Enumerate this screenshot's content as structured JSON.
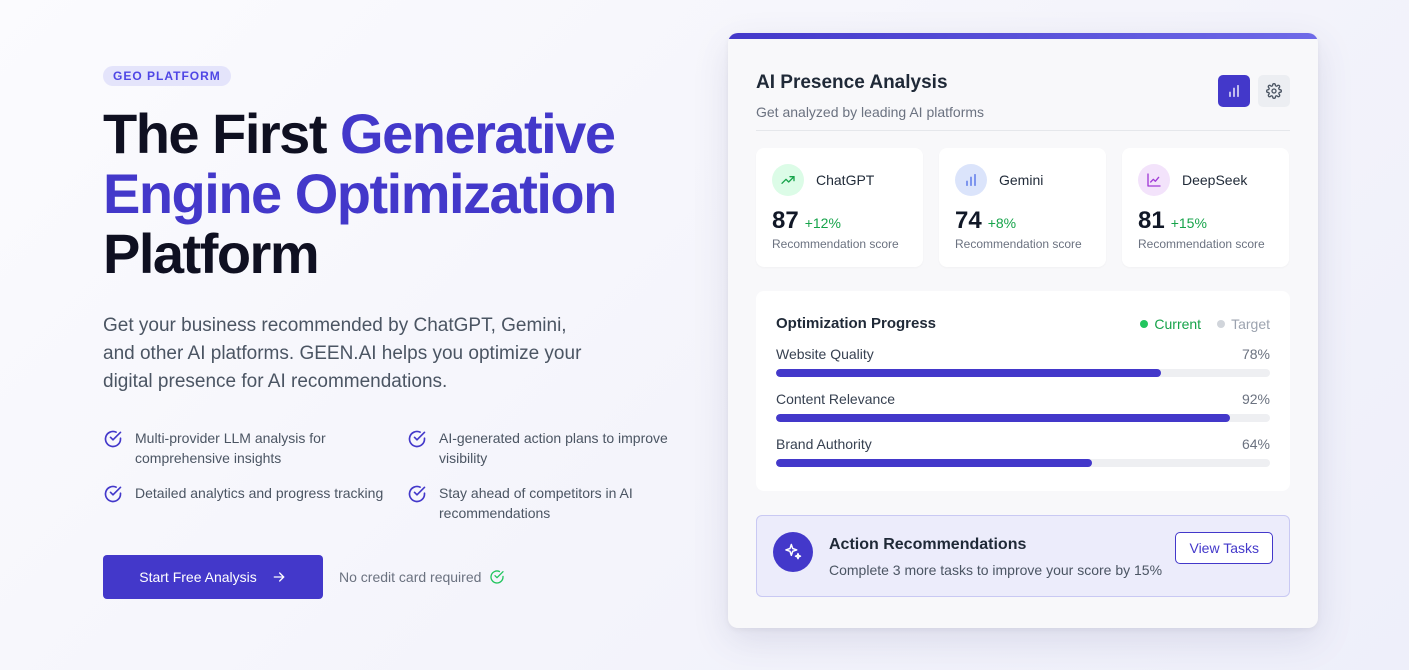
{
  "hero": {
    "badge": "GEO PLATFORM",
    "headline_plain": "The First ",
    "headline_accent": "Generative Engine Optimization",
    "headline_end": "Platform",
    "lead": "Get your business recommended by ChatGPT, Gemini, and other AI platforms. GEEN.AI helps you optimize your digital presence for AI recommendations.",
    "features": [
      "Multi-provider LLM analysis for comprehensive insights",
      "AI-generated action plans to improve visibility",
      "Detailed analytics and progress tracking",
      "Stay ahead of competitors in AI recommendations"
    ],
    "cta_label": "Start Free Analysis",
    "no_card": "No credit card required"
  },
  "card": {
    "title": "AI Presence Analysis",
    "subtitle": "Get analyzed by leading AI platforms",
    "providers": [
      {
        "name": "ChatGPT",
        "score": "87",
        "delta": "+12%",
        "label": "Recommendation score",
        "icon": "trending-up-icon",
        "bg": "#dcfce7",
        "fg": "#16a34a"
      },
      {
        "name": "Gemini",
        "score": "74",
        "delta": "+8%",
        "label": "Recommendation score",
        "icon": "bar-chart-icon",
        "bg": "#dbe4fb",
        "fg": "#4f6ee8"
      },
      {
        "name": "DeepSeek",
        "score": "81",
        "delta": "+15%",
        "label": "Recommendation score",
        "icon": "line-chart-icon",
        "bg": "#f3e3fb",
        "fg": "#a03ad6"
      }
    ],
    "progress": {
      "title": "Optimization Progress",
      "legend_current": "Current",
      "legend_target": "Target",
      "bars": [
        {
          "label": "Website Quality",
          "pct_text": "78%",
          "value": 78
        },
        {
          "label": "Content Relevance",
          "pct_text": "92%",
          "value": 92
        },
        {
          "label": "Brand Authority",
          "pct_text": "64%",
          "value": 64
        }
      ]
    },
    "recommendation": {
      "title": "Action Recommendations",
      "text": "Complete 3 more tasks to improve your score by 15%",
      "button": "View Tasks"
    }
  },
  "colors": {
    "accent": "#4338ca",
    "positive": "#16a34a",
    "target": "#d1d5db"
  }
}
